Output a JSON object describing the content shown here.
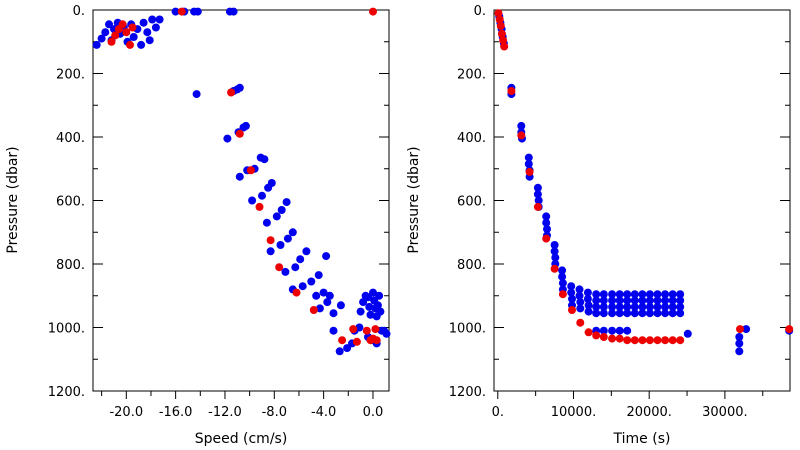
{
  "chart_data": [
    {
      "type": "scatter",
      "xlabel": "Speed (cm/s)",
      "ylabel": "Pressure (dbar)",
      "xlim": [
        -22.7,
        1.3
      ],
      "ylim": [
        1200,
        0
      ],
      "x_ticks": [
        -20,
        -16,
        -12,
        -8,
        -4,
        0
      ],
      "x_tick_labels": [
        "-20.0",
        "-16.0",
        "-12.0",
        "-8.0",
        "-4.0",
        "0.0"
      ],
      "y_ticks": [
        0,
        200,
        400,
        600,
        800,
        1000,
        1200
      ],
      "y_tick_labels": [
        "0.",
        "200.",
        "400.",
        "600.",
        "800.",
        "1000.",
        "1200."
      ],
      "colors": {
        "blue": "#0000ee",
        "red": "#ee0000"
      },
      "series": [
        {
          "color": "blue",
          "points": [
            [
              -22.4,
              110
            ],
            [
              -22.0,
              90
            ],
            [
              -21.7,
              70
            ],
            [
              -21.4,
              45
            ],
            [
              -21.2,
              95
            ],
            [
              -21.0,
              60
            ],
            [
              -20.7,
              40
            ],
            [
              -20.5,
              75
            ],
            [
              -20.2,
              55
            ],
            [
              -19.9,
              100
            ],
            [
              -19.6,
              45
            ],
            [
              -19.4,
              85
            ],
            [
              -19.1,
              60
            ],
            [
              -18.8,
              110
            ],
            [
              -18.6,
              40
            ],
            [
              -18.3,
              70
            ],
            [
              -18.1,
              95
            ],
            [
              -17.9,
              30
            ],
            [
              -17.6,
              55
            ],
            [
              -17.3,
              30
            ],
            [
              -16.0,
              5
            ],
            [
              -15.3,
              5
            ],
            [
              -14.5,
              5
            ],
            [
              -14.2,
              5
            ],
            [
              -11.6,
              5
            ],
            [
              -11.3,
              5
            ],
            [
              -14.3,
              265
            ],
            [
              -11.3,
              255
            ],
            [
              -11.0,
              250
            ],
            [
              -10.8,
              245
            ],
            [
              -11.8,
              405
            ],
            [
              -10.9,
              385
            ],
            [
              -10.5,
              370
            ],
            [
              -10.3,
              365
            ],
            [
              -10.8,
              525
            ],
            [
              -10.2,
              505
            ],
            [
              -9.6,
              500
            ],
            [
              -9.1,
              465
            ],
            [
              -8.8,
              470
            ],
            [
              -9.8,
              600
            ],
            [
              -9.0,
              585
            ],
            [
              -8.5,
              560
            ],
            [
              -8.2,
              545
            ],
            [
              -8.6,
              670
            ],
            [
              -7.8,
              650
            ],
            [
              -7.4,
              630
            ],
            [
              -7.0,
              605
            ],
            [
              -8.3,
              760
            ],
            [
              -7.5,
              740
            ],
            [
              -6.9,
              720
            ],
            [
              -6.5,
              700
            ],
            [
              -7.1,
              825
            ],
            [
              -6.3,
              810
            ],
            [
              -5.9,
              785
            ],
            [
              -5.4,
              760
            ],
            [
              -6.5,
              880
            ],
            [
              -5.7,
              870
            ],
            [
              -5.0,
              855
            ],
            [
              -4.4,
              835
            ],
            [
              -3.8,
              775
            ],
            [
              -4.6,
              900
            ],
            [
              -4.0,
              890
            ],
            [
              -3.5,
              900
            ],
            [
              -4.3,
              940
            ],
            [
              -3.7,
              920
            ],
            [
              -3.2,
              955
            ],
            [
              -2.6,
              930
            ],
            [
              -3.2,
              1010
            ],
            [
              -2.7,
              1075
            ],
            [
              -2.1,
              1065
            ],
            [
              -1.7,
              1050
            ],
            [
              -1.5,
              1010
            ],
            [
              -1.1,
              1000
            ],
            [
              -1.0,
              950
            ],
            [
              -0.8,
              920
            ],
            [
              -0.6,
              900
            ],
            [
              -0.4,
              905
            ],
            [
              -0.3,
              935
            ],
            [
              -0.2,
              960
            ],
            [
              0.0,
              890
            ],
            [
              0.1,
              915
            ],
            [
              0.2,
              940
            ],
            [
              0.3,
              965
            ],
            [
              0.4,
              930
            ],
            [
              0.5,
              900
            ],
            [
              0.6,
              950
            ],
            [
              0.7,
              1010
            ],
            [
              0.9,
              1010
            ],
            [
              1.1,
              1020
            ],
            [
              0.3,
              1050
            ],
            [
              0.0,
              1040
            ],
            [
              -0.4,
              1030
            ]
          ]
        },
        {
          "color": "red",
          "points": [
            [
              -21.2,
              100
            ],
            [
              -20.9,
              80
            ],
            [
              -20.6,
              60
            ],
            [
              -20.3,
              45
            ],
            [
              -20.0,
              70
            ],
            [
              -19.7,
              110
            ],
            [
              -19.5,
              55
            ],
            [
              -15.5,
              5
            ],
            [
              0.0,
              5
            ],
            [
              -11.5,
              260
            ],
            [
              -10.8,
              390
            ],
            [
              -9.9,
              505
            ],
            [
              -9.2,
              620
            ],
            [
              -8.3,
              725
            ],
            [
              -7.6,
              810
            ],
            [
              -6.2,
              890
            ],
            [
              -4.8,
              945
            ],
            [
              -2.5,
              1040
            ],
            [
              -1.6,
              1005
            ],
            [
              -1.3,
              1045
            ],
            [
              -0.5,
              1010
            ],
            [
              -0.2,
              1040
            ],
            [
              0.0,
              1035
            ],
            [
              0.2,
              1005
            ],
            [
              0.3,
              1040
            ]
          ]
        }
      ]
    },
    {
      "type": "scatter",
      "xlabel": "Time (s)",
      "ylabel": "Pressure (dbar)",
      "xlim": [
        -500,
        38600
      ],
      "ylim": [
        1200,
        0
      ],
      "x_ticks": [
        0,
        10000,
        20000,
        30000
      ],
      "x_tick_labels": [
        "0.",
        "10000.",
        "20000.",
        "30000."
      ],
      "y_ticks": [
        0,
        200,
        400,
        600,
        800,
        1000,
        1200
      ],
      "y_tick_labels": [
        "0.",
        "200.",
        "400.",
        "600.",
        "800.",
        "1000.",
        "1200."
      ],
      "colors": {
        "blue": "#0000ee",
        "red": "#ee0000"
      },
      "series": [
        {
          "color": "blue",
          "points": [
            [
              200,
              20
            ],
            [
              350,
              40
            ],
            [
              500,
              60
            ],
            [
              650,
              85
            ],
            [
              800,
              105
            ],
            [
              1800,
              245
            ],
            [
              1800,
              265
            ],
            [
              3100,
              365
            ],
            [
              3100,
              385
            ],
            [
              3200,
              405
            ],
            [
              4100,
              465
            ],
            [
              4100,
              485
            ],
            [
              4200,
              505
            ],
            [
              4200,
              525
            ],
            [
              5300,
              560
            ],
            [
              5300,
              580
            ],
            [
              5400,
              600
            ],
            [
              5400,
              620
            ],
            [
              6400,
              650
            ],
            [
              6400,
              670
            ],
            [
              6500,
              690
            ],
            [
              6500,
              710
            ],
            [
              7500,
              740
            ],
            [
              7500,
              760
            ],
            [
              7600,
              780
            ],
            [
              7600,
              800
            ],
            [
              8500,
              820
            ],
            [
              8500,
              840
            ],
            [
              8600,
              860
            ],
            [
              8600,
              880
            ],
            [
              9700,
              870
            ],
            [
              9700,
              890
            ],
            [
              9800,
              910
            ],
            [
              9800,
              930
            ],
            [
              10800,
              880
            ],
            [
              10800,
              900
            ],
            [
              10900,
              920
            ],
            [
              10900,
              940
            ],
            [
              11900,
              890
            ],
            [
              11900,
              910
            ],
            [
              12000,
              930
            ],
            [
              12000,
              950
            ],
            [
              13000,
              895
            ],
            [
              13000,
              915
            ],
            [
              13000,
              935
            ],
            [
              13000,
              955
            ],
            [
              13000,
              1010
            ],
            [
              14000,
              895
            ],
            [
              14000,
              915
            ],
            [
              14000,
              935
            ],
            [
              14000,
              955
            ],
            [
              14000,
              1010
            ],
            [
              15100,
              895
            ],
            [
              15100,
              915
            ],
            [
              15100,
              935
            ],
            [
              15100,
              955
            ],
            [
              15100,
              1010
            ],
            [
              16100,
              895
            ],
            [
              16100,
              915
            ],
            [
              16100,
              935
            ],
            [
              16100,
              955
            ],
            [
              16100,
              1010
            ],
            [
              17100,
              895
            ],
            [
              17100,
              915
            ],
            [
              17100,
              935
            ],
            [
              17100,
              955
            ],
            [
              17100,
              1010
            ],
            [
              18100,
              895
            ],
            [
              18100,
              915
            ],
            [
              18100,
              935
            ],
            [
              18100,
              955
            ],
            [
              19100,
              895
            ],
            [
              19100,
              915
            ],
            [
              19100,
              935
            ],
            [
              19100,
              955
            ],
            [
              20100,
              895
            ],
            [
              20100,
              915
            ],
            [
              20100,
              935
            ],
            [
              20100,
              955
            ],
            [
              21100,
              895
            ],
            [
              21100,
              915
            ],
            [
              21100,
              935
            ],
            [
              21100,
              955
            ],
            [
              22100,
              895
            ],
            [
              22100,
              915
            ],
            [
              22100,
              935
            ],
            [
              22100,
              955
            ],
            [
              23100,
              895
            ],
            [
              23100,
              915
            ],
            [
              23100,
              935
            ],
            [
              23100,
              955
            ],
            [
              24100,
              895
            ],
            [
              24100,
              915
            ],
            [
              24100,
              935
            ],
            [
              24100,
              955
            ],
            [
              25100,
              1020
            ],
            [
              31900,
              1030
            ],
            [
              31900,
              1050
            ],
            [
              31900,
              1075
            ],
            [
              32800,
              1005
            ],
            [
              38500,
              1010
            ]
          ]
        },
        {
          "color": "red",
          "points": [
            [
              100,
              10
            ],
            [
              250,
              30
            ],
            [
              400,
              50
            ],
            [
              550,
              75
            ],
            [
              700,
              95
            ],
            [
              850,
              115
            ],
            [
              1800,
              255
            ],
            [
              3100,
              395
            ],
            [
              4200,
              510
            ],
            [
              5300,
              620
            ],
            [
              6400,
              720
            ],
            [
              7500,
              815
            ],
            [
              8600,
              895
            ],
            [
              9800,
              945
            ],
            [
              10900,
              985
            ],
            [
              12000,
              1015
            ],
            [
              13000,
              1025
            ],
            [
              14000,
              1030
            ],
            [
              15100,
              1035
            ],
            [
              16100,
              1035
            ],
            [
              17100,
              1040
            ],
            [
              18100,
              1040
            ],
            [
              19100,
              1040
            ],
            [
              20100,
              1040
            ],
            [
              21100,
              1040
            ],
            [
              22100,
              1040
            ],
            [
              23100,
              1040
            ],
            [
              24100,
              1040
            ],
            [
              32000,
              1005
            ],
            [
              38500,
              1005
            ]
          ]
        }
      ]
    }
  ]
}
